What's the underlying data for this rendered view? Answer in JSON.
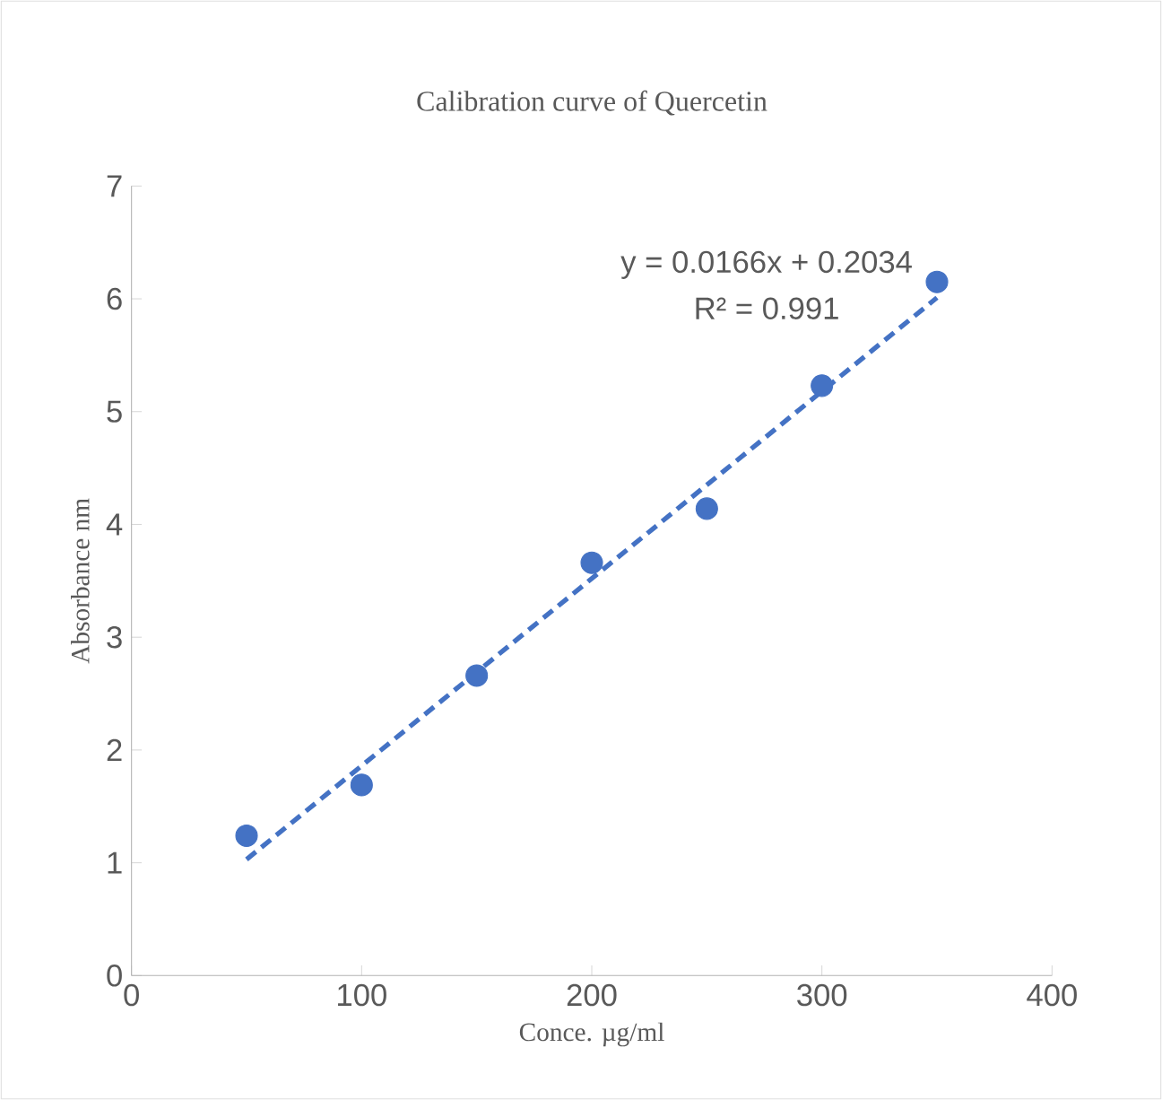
{
  "chart_data": {
    "type": "scatter",
    "title": "Calibration curve of Quercetin",
    "xlabel": "Conce. µg/ml",
    "ylabel": "Absorbance nm",
    "series": [
      {
        "color": "#4472c4",
        "x": [
          50,
          100,
          150,
          200,
          250,
          300,
          350
        ],
        "values": [
          1.24,
          1.69,
          2.66,
          3.66,
          4.14,
          5.23,
          6.15
        ],
        "marker": "circle"
      },
      {
        "type": "line",
        "color": "#4472c4",
        "x": [
          50,
          350
        ],
        "values": [
          1.03,
          6.01
        ],
        "line_style": "dashed",
        "marker": "none"
      }
    ],
    "annotations": [
      "y = 0.0166x + 0.2034",
      "R² = 0.991"
    ],
    "xlim": [
      0,
      400
    ],
    "xticks": [
      0,
      100,
      200,
      300,
      400
    ],
    "ylim": [
      0,
      7
    ],
    "yticks": [
      0,
      1,
      2,
      3,
      4,
      5,
      6,
      7
    ],
    "grid": false
  }
}
